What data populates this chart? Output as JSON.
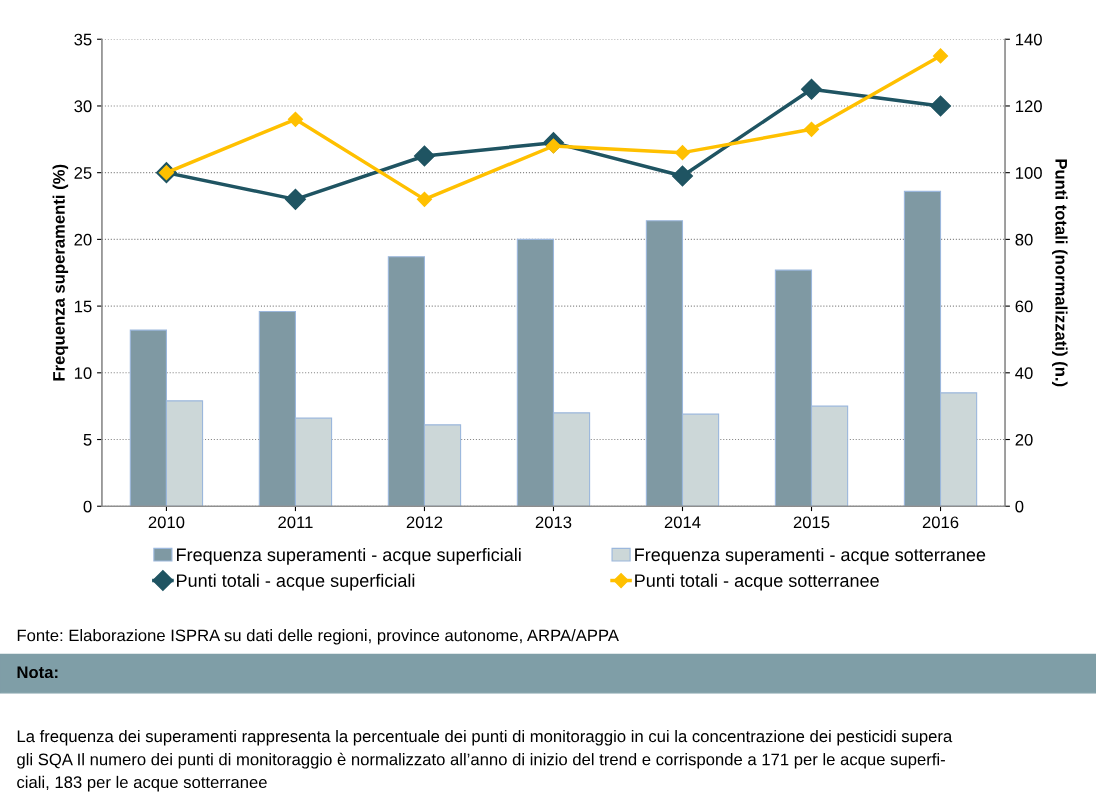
{
  "chart_data": {
    "type": "bar",
    "xlabel": null,
    "ylabel": "Frequenza superamenti (%)",
    "y2label": "Punti totali (normalizzati) (n.)",
    "categories": [
      "2010",
      "2011",
      "2012",
      "2013",
      "2014",
      "2015",
      "2016"
    ],
    "series": [
      {
        "name": "Frequenza superamenti - acque superficiali",
        "color": "#7f99a3",
        "values": [
          13.2,
          14.6,
          18.7,
          20.0,
          21.4,
          17.7,
          23.6
        ]
      },
      {
        "name": "Frequenza superamenti - acque sotterranee",
        "color": "#ccd7d8",
        "values": [
          7.9,
          6.6,
          6.1,
          7.0,
          6.9,
          7.5,
          8.5
        ]
      },
      {
        "name": "Punti totali - acque superficiali",
        "type": "line",
        "axis": "y2",
        "color": "#1f5462",
        "values": [
          100,
          92,
          105,
          109,
          99,
          125,
          120
        ]
      },
      {
        "name": "Punti totali - acque sotterranee",
        "type": "line",
        "axis": "y2",
        "color": "#ffc000",
        "values": [
          100,
          116,
          92,
          108,
          106,
          113,
          135
        ]
      }
    ],
    "ylim": [
      0,
      35
    ],
    "yticks": [
      0,
      5,
      10,
      15,
      20,
      25,
      30,
      35
    ],
    "y2lim": [
      0,
      140
    ],
    "y2ticks": [
      0,
      20,
      40,
      60,
      80,
      100,
      120,
      140
    ],
    "grid": "y",
    "legend": "bottom",
    "marker": "diamond",
    "line_style": "solid",
    "annotations": [
      "Fonte: Elaborazione ISPRA su dati delle regioni, province autonome, ARPA/APPA",
      "Nota:",
      "La frequenza dei superamenti rappresenta la percentuale dei punti di monitoraggio in cui la concentrazione dei pesticidi supera\ngli SQA Il numero dei punti di monitoraggio è normalizzato all’anno di inizio del trend e corrisponde a 171 per le acque superfi-\nciali, 183 per le acque sotterranee"
    ]
  }
}
